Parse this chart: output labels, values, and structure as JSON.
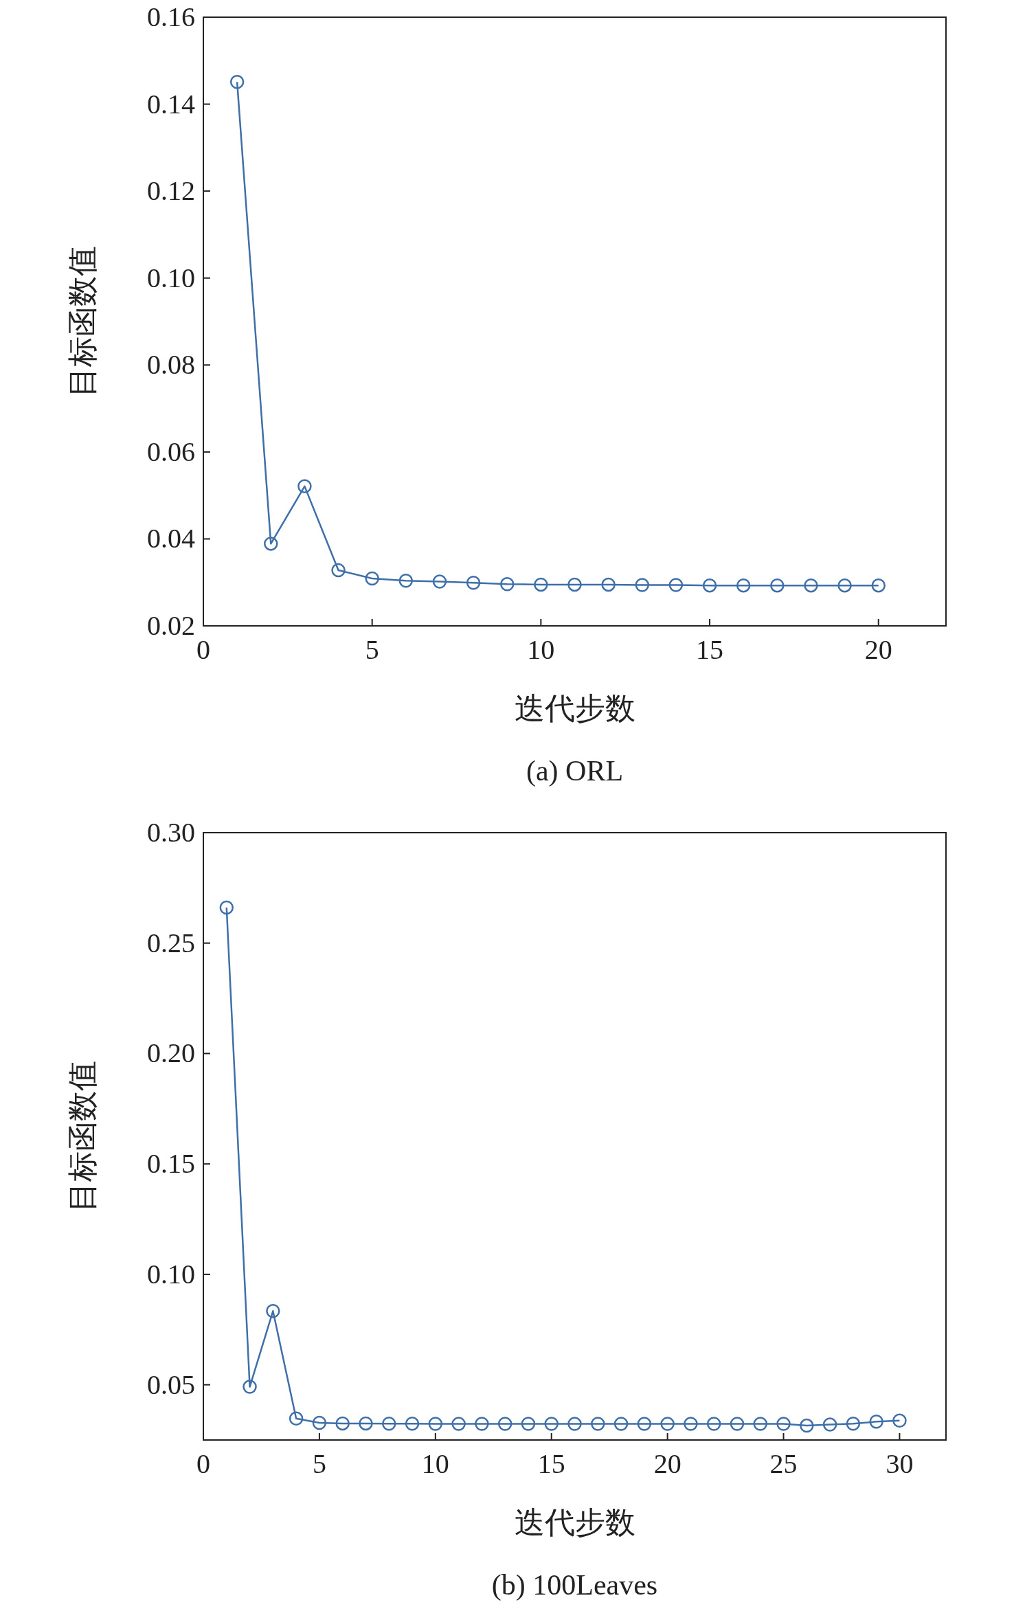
{
  "chart_data": [
    {
      "type": "line",
      "title": "(a) ORL",
      "xlabel": "迭代步数",
      "ylabel": "目标函数值",
      "x": [
        1,
        2,
        3,
        4,
        5,
        6,
        7,
        8,
        9,
        10,
        11,
        12,
        13,
        14,
        15,
        16,
        17,
        18,
        19,
        20
      ],
      "series": [
        {
          "color": "#3f6fa8",
          "values": [
            0.1451,
            0.0389,
            0.0521,
            0.0328,
            0.0309,
            0.0304,
            0.0302,
            0.0299,
            0.0296,
            0.0295,
            0.0295,
            0.0295,
            0.0294,
            0.0294,
            0.0293,
            0.0293,
            0.0293,
            0.0293,
            0.0293,
            0.0293
          ]
        }
      ],
      "xlim": [
        0,
        22
      ],
      "xticks": [
        0,
        5,
        10,
        15,
        20
      ],
      "ylim": [
        0.02,
        0.16
      ],
      "yticks": [
        0.02,
        0.04,
        0.06,
        0.08,
        {
          "value": 0.1,
          "label": "0.10"
        },
        0.12,
        0.14,
        0.16
      ],
      "marker": "circle",
      "grid": false
    },
    {
      "type": "line",
      "title": "(b) 100Leaves",
      "xlabel": "迭代步数",
      "ylabel": "目标函数值",
      "x": [
        1,
        2,
        3,
        4,
        5,
        6,
        7,
        8,
        9,
        10,
        11,
        12,
        13,
        14,
        15,
        16,
        17,
        18,
        19,
        20,
        21,
        22,
        23,
        24,
        25,
        26,
        27,
        28,
        29,
        30
      ],
      "series": [
        {
          "color": "#3f6fa8",
          "values": [
            0.2661,
            0.0491,
            0.0834,
            0.0347,
            0.0328,
            0.0325,
            0.0325,
            0.0324,
            0.0324,
            0.0323,
            0.0323,
            0.0323,
            0.0323,
            0.0323,
            0.0323,
            0.0323,
            0.0323,
            0.0323,
            0.0323,
            0.0323,
            0.0323,
            0.0323,
            0.0323,
            0.0323,
            0.0323,
            0.0315,
            0.032,
            0.0324,
            0.0333,
            0.0338
          ]
        }
      ],
      "xlim": [
        0,
        32
      ],
      "xticks": [
        0,
        5,
        10,
        15,
        20,
        25,
        30
      ],
      "ylim": [
        0.025,
        0.3
      ],
      "yticks": [
        0.05,
        {
          "value": 0.1,
          "label": "0.10"
        },
        0.15,
        {
          "value": 0.2,
          "label": "0.20"
        },
        0.25,
        {
          "value": 0.3,
          "label": "0.30"
        }
      ],
      "marker": "circle",
      "grid": false
    }
  ]
}
